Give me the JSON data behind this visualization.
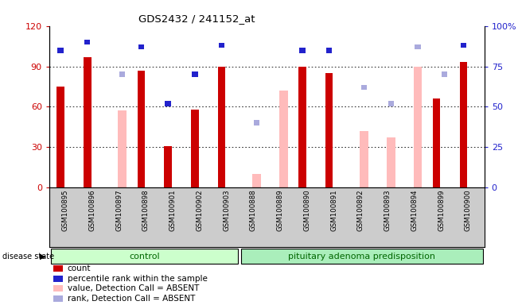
{
  "title": "GDS2432 / 241152_at",
  "samples": [
    "GSM100895",
    "GSM100896",
    "GSM100897",
    "GSM100898",
    "GSM100901",
    "GSM100902",
    "GSM100903",
    "GSM100888",
    "GSM100889",
    "GSM100890",
    "GSM100891",
    "GSM100892",
    "GSM100893",
    "GSM100894",
    "GSM100899",
    "GSM100900"
  ],
  "groups": [
    "control",
    "control",
    "control",
    "control",
    "control",
    "control",
    "control",
    "pituitary adenoma predisposition",
    "pituitary adenoma predisposition",
    "pituitary adenoma predisposition",
    "pituitary adenoma predisposition",
    "pituitary adenoma predisposition",
    "pituitary adenoma predisposition",
    "pituitary adenoma predisposition",
    "pituitary adenoma predisposition",
    "pituitary adenoma predisposition"
  ],
  "count_values": [
    75,
    97,
    null,
    87,
    31,
    58,
    90,
    null,
    null,
    90,
    85,
    null,
    null,
    null,
    66,
    93
  ],
  "percentile_rank": [
    85,
    90,
    null,
    87,
    52,
    70,
    88,
    null,
    null,
    85,
    85,
    null,
    null,
    null,
    null,
    88
  ],
  "absent_value": [
    null,
    null,
    57,
    null,
    null,
    null,
    null,
    10,
    72,
    null,
    null,
    42,
    37,
    90,
    null,
    null
  ],
  "absent_rank": [
    null,
    null,
    70,
    null,
    null,
    null,
    null,
    40,
    null,
    null,
    null,
    62,
    52,
    87,
    70,
    null
  ],
  "ylim_left": [
    0,
    120
  ],
  "ylim_right": [
    0,
    100
  ],
  "yticks_left": [
    0,
    30,
    60,
    90,
    120
  ],
  "yticks_right": [
    0,
    25,
    50,
    75,
    100
  ],
  "ytick_right_labels": [
    "0",
    "25",
    "50",
    "75",
    "100%"
  ],
  "color_count": "#cc0000",
  "color_percentile": "#2222cc",
  "color_absent_value": "#ffbbbb",
  "color_absent_rank": "#aaaadd",
  "light_green": "#ccffcc",
  "mid_green": "#aaeebb",
  "group_label_color": "#006600",
  "sample_bg": "#cccccc"
}
